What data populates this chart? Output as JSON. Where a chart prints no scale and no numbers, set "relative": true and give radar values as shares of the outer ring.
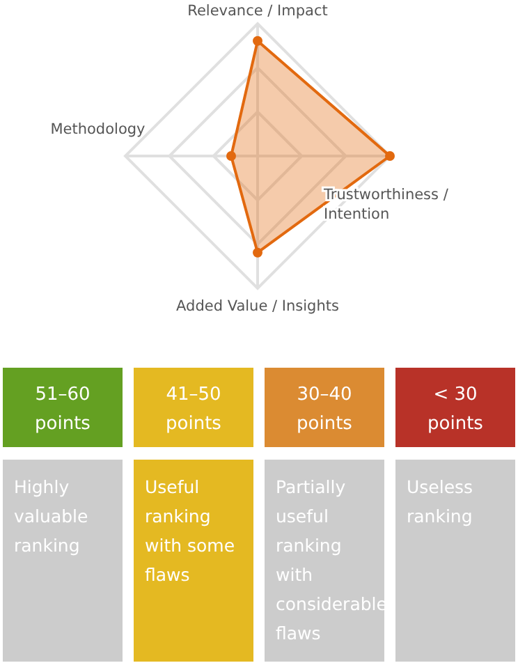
{
  "chart_data": [
    {
      "type": "radar",
      "relative": true,
      "grid": true,
      "marker": "circle",
      "categories": [
        "Relevance / Impact",
        "Trustworthiness / Intention",
        "Added Value / Insights",
        "Methodology"
      ],
      "series": [
        {
          "color": "#e2690f",
          "values": [
            0.87,
            1,
            0.73,
            0.2
          ]
        }
      ]
    },
    {
      "type": "other",
      "categories": [
        "51–60 points",
        "41–50 points",
        "30–40 points",
        "< 30 points"
      ],
      "annotations": [
        "Highly valuable ranking",
        "Useful ranking with some flaws",
        "Partially useful ranking with considerable flaws",
        "Useless ranking"
      ],
      "colors": [
        "#64a022",
        "#e4b922",
        "#db8b32",
        "#b83228",
        "#cccccc",
        "#e4b922",
        "#cccccc",
        "#cccccc"
      ]
    }
  ]
}
